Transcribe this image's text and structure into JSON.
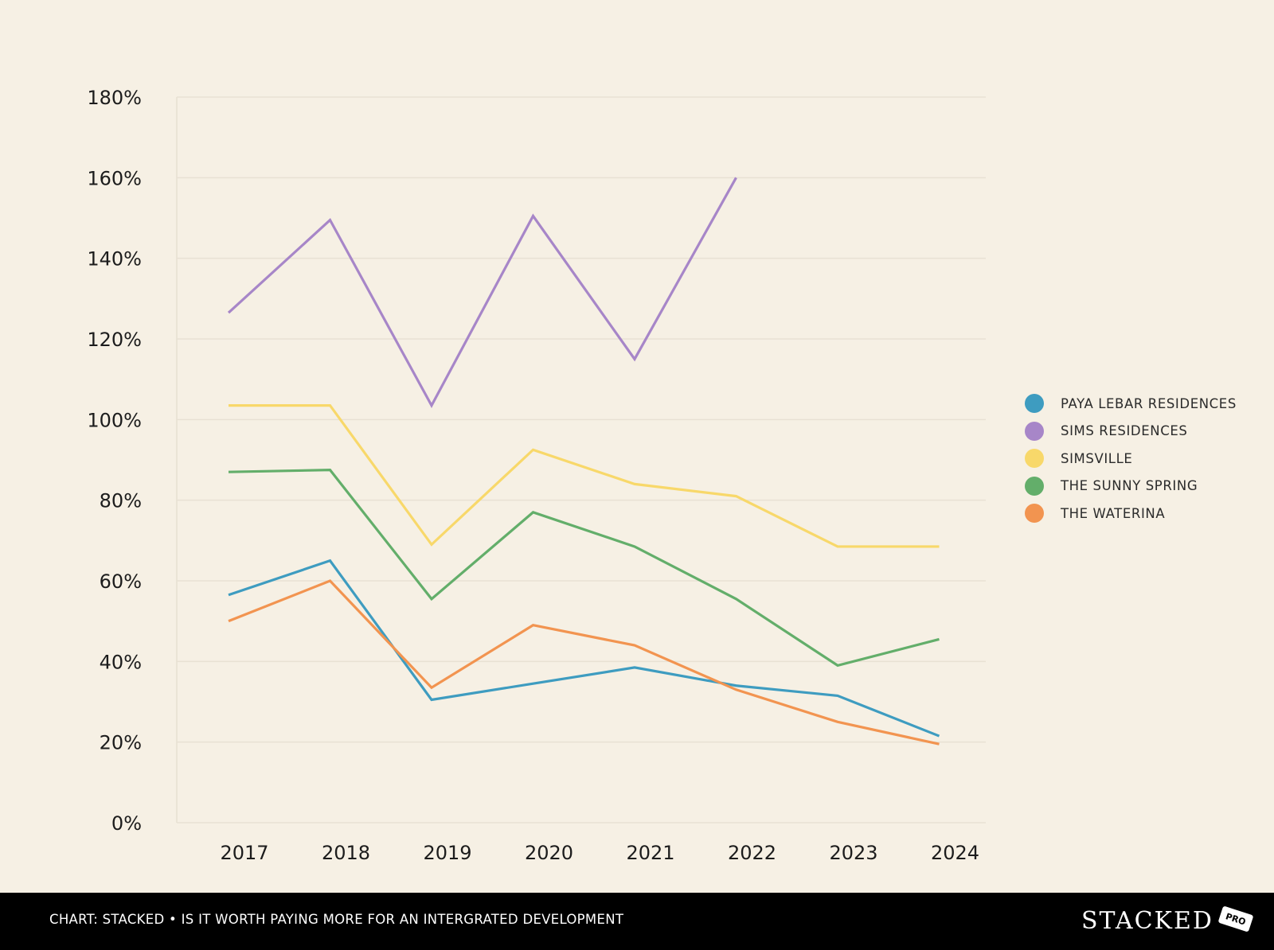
{
  "chart_data": {
    "type": "line",
    "x": [
      "2017",
      "2018",
      "2019",
      "2020",
      "2021",
      "2022",
      "2023",
      "2024"
    ],
    "yticks": [
      "0%",
      "20%",
      "40%",
      "60%",
      "80%",
      "100%",
      "120%",
      "140%",
      "160%",
      "180%"
    ],
    "ylim": [
      0,
      180
    ],
    "grid": true,
    "legend_position": "right",
    "series": [
      {
        "name": "PAYA LEBAR RESIDENCES",
        "color": "#3e9cc0",
        "values": [
          56.5,
          65,
          30.5,
          34.5,
          38.5,
          34,
          31.5,
          21.5
        ]
      },
      {
        "name": "SIMS RESIDENCES",
        "color": "#a786c8",
        "values": [
          126.5,
          149.5,
          103.5,
          150.5,
          115,
          160,
          null,
          null
        ]
      },
      {
        "name": "SIMSVILLE",
        "color": "#f8d86a",
        "values": [
          103.5,
          103.5,
          69,
          92.5,
          84,
          81,
          68.5,
          68.5
        ]
      },
      {
        "name": "THE SUNNY SPRING",
        "color": "#63ae6a",
        "values": [
          87,
          87.5,
          55.5,
          77,
          68.5,
          55.5,
          39,
          45.5
        ]
      },
      {
        "name": "THE WATERINA",
        "color": "#f29450",
        "values": [
          50,
          60,
          33.5,
          49,
          44,
          33,
          25,
          19.5
        ]
      }
    ]
  },
  "footer": {
    "caption": "CHART: STACKED • IS IT WORTH PAYING MORE FOR AN INTERGRATED DEVELOPMENT",
    "brand": "STACKED",
    "badge": "PRO"
  }
}
